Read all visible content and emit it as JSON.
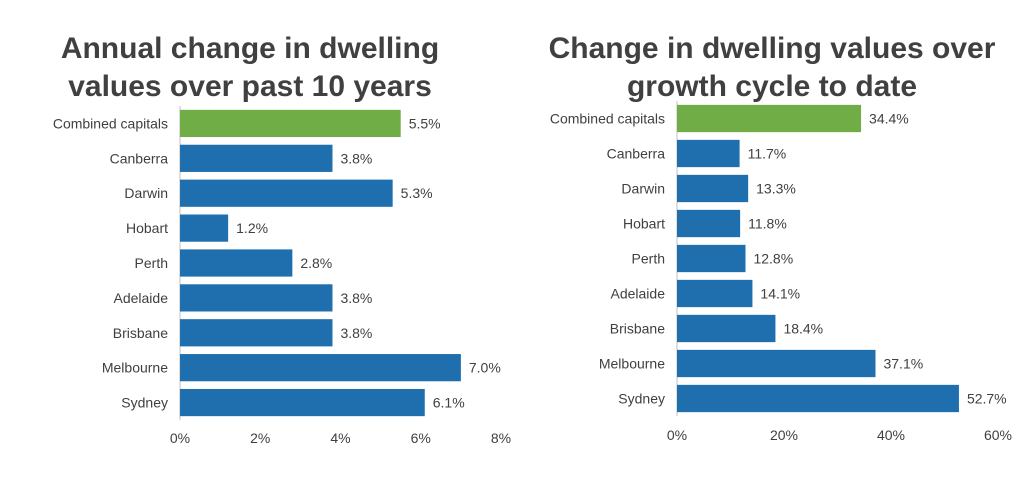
{
  "chart_data": [
    {
      "type": "bar",
      "orientation": "horizontal",
      "title": "Annual change in dwelling values over past 10 years",
      "title_lines": [
        "Annual change in dwelling",
        "values over past 10 years"
      ],
      "categories": [
        "Combined capitals",
        "Canberra",
        "Darwin",
        "Hobart",
        "Perth",
        "Adelaide",
        "Brisbane",
        "Melbourne",
        "Sydney"
      ],
      "values": [
        5.5,
        3.8,
        5.3,
        1.2,
        2.8,
        3.8,
        3.8,
        7.0,
        6.1
      ],
      "value_labels": [
        "5.5%",
        "3.8%",
        "5.3%",
        "1.2%",
        "2.8%",
        "3.8%",
        "3.8%",
        "7.0%",
        "6.1%"
      ],
      "xlim": [
        0,
        8
      ],
      "xticks": [
        0,
        2,
        4,
        6,
        8
      ],
      "xtick_labels": [
        "0%",
        "2%",
        "4%",
        "6%",
        "8%"
      ],
      "highlight_category": "Combined capitals",
      "colors": {
        "highlight": "#70ad47",
        "bar": "#1f6fae",
        "axis": "#bfbfbf"
      },
      "grid": false,
      "legend": "none"
    },
    {
      "type": "bar",
      "orientation": "horizontal",
      "title": "Change in dwelling values over growth cycle to date",
      "title_lines": [
        "Change in dwelling values over",
        "growth cycle to date"
      ],
      "categories": [
        "Combined capitals",
        "Canberra",
        "Darwin",
        "Hobart",
        "Perth",
        "Adelaide",
        "Brisbane",
        "Melbourne",
        "Sydney"
      ],
      "values": [
        34.4,
        11.7,
        13.3,
        11.8,
        12.8,
        14.1,
        18.4,
        37.1,
        52.7
      ],
      "value_labels": [
        "34.4%",
        "11.7%",
        "13.3%",
        "11.8%",
        "12.8%",
        "14.1%",
        "18.4%",
        "37.1%",
        "52.7%"
      ],
      "xlim": [
        0,
        60
      ],
      "xticks": [
        0,
        20,
        40,
        60
      ],
      "xtick_labels": [
        "0%",
        "20%",
        "40%",
        "60%"
      ],
      "highlight_category": "Combined capitals",
      "colors": {
        "highlight": "#70ad47",
        "bar": "#1f6fae",
        "axis": "#bfbfbf"
      },
      "grid": false,
      "legend": "none"
    }
  ]
}
